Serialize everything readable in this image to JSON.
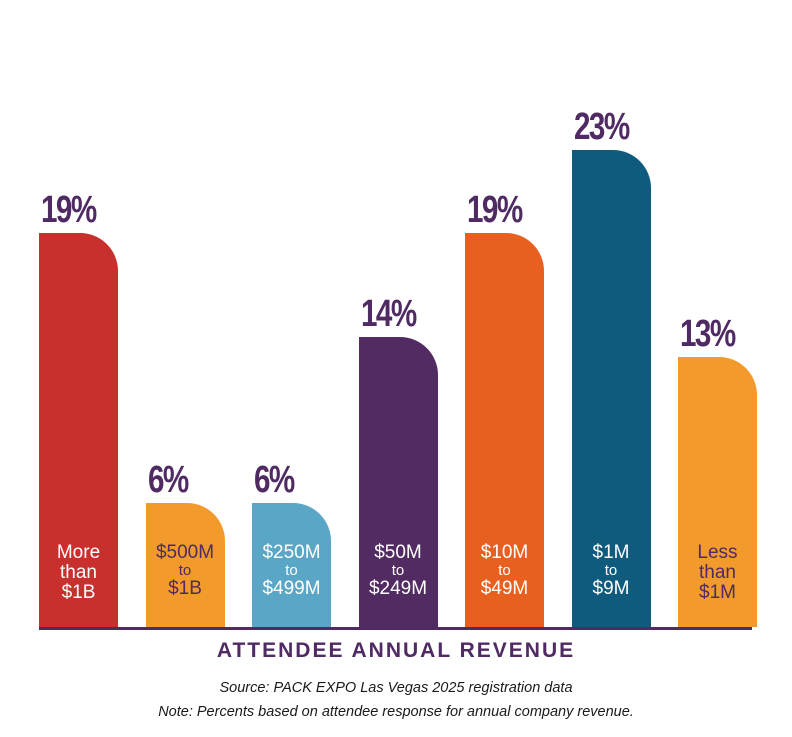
{
  "chart_data": {
    "type": "bar",
    "xlabel": "ATTENDEE ANNUAL REVENUE",
    "ylabel": "",
    "ylim": [
      0,
      23
    ],
    "categories": [
      {
        "lines": [
          "More",
          "than",
          "$1B"
        ],
        "display": "More than $1B"
      },
      {
        "lines": [
          "$500M",
          "to",
          "$1B"
        ],
        "display": "$500M to $1B"
      },
      {
        "lines": [
          "$250M",
          "to",
          "$499M"
        ],
        "display": "$250M to $499M"
      },
      {
        "lines": [
          "$50M",
          "to",
          "$249M"
        ],
        "display": "$50M to $249M"
      },
      {
        "lines": [
          "$10M",
          "to",
          "$49M"
        ],
        "display": "$10M to $49M"
      },
      {
        "lines": [
          "$1M",
          "to",
          "$9M"
        ],
        "display": "$1M to $9M"
      },
      {
        "lines": [
          "Less",
          "than",
          "$1M"
        ],
        "display": "Less than $1M"
      }
    ],
    "values": [
      19,
      6,
      6,
      14,
      19,
      23,
      13
    ],
    "value_labels": [
      "19%",
      "6%",
      "6%",
      "14%",
      "19%",
      "23%",
      "13%"
    ],
    "colors": [
      "#c8302e",
      "#f39a2c",
      "#5aa6c6",
      "#532b63",
      "#e8601f",
      "#0e5b7e",
      "#f39a2c"
    ],
    "label_colors": [
      "#ffffff",
      "#4f2a63",
      "#ffffff",
      "#ffffff",
      "#ffffff",
      "#ffffff",
      "#4f2a63"
    ]
  },
  "footer": {
    "source": "Source: PACK EXPO Las Vegas 2025 registration data",
    "note": "Note: Percents based on attendee response for annual company revenue."
  }
}
